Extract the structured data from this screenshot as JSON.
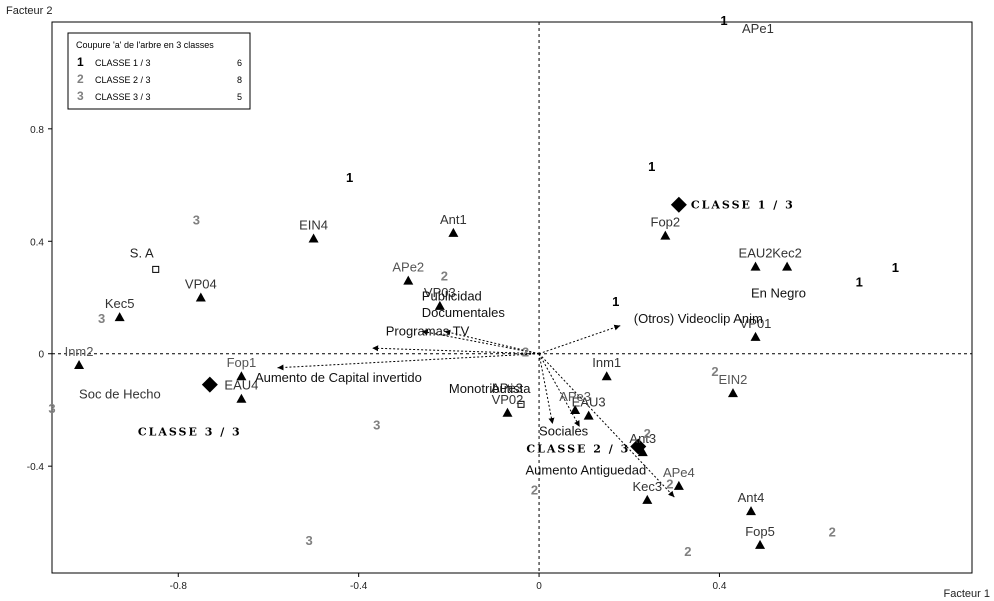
{
  "chart_data": {
    "type": "scatter",
    "xlabel": "Facteur 1",
    "ylabel": "Facteur 2",
    "xlim": [
      -1.08,
      0.96
    ],
    "ylim": [
      -0.78,
      1.18
    ],
    "x_ticks": [
      -0.8,
      -0.4,
      0,
      0.4
    ],
    "y_ticks": [
      -0.4,
      0,
      0.4,
      0.8
    ],
    "grid": false,
    "zero_lines": true,
    "legend": {
      "title": "Coupure 'a' de l'arbre en  3 classes",
      "placement": "top-left",
      "entries": [
        {
          "num": "1",
          "label": "CLASSE  1 / 3",
          "count": "6",
          "color": "#000000"
        },
        {
          "num": "2",
          "label": "CLASSE  2 / 3",
          "count": "8",
          "color": "#808080"
        },
        {
          "num": "3",
          "label": "CLASSE  3 / 3",
          "count": "5",
          "color": "#808080"
        }
      ]
    },
    "centroids": [
      {
        "label": "CLASSE  1 / 3",
        "x": 0.31,
        "y": 0.53
      },
      {
        "label": "CLASSE  2 / 3",
        "x": 0.22,
        "y": -0.33
      },
      {
        "label": "CLASSE  3 / 3",
        "x": -0.73,
        "y": -0.11
      }
    ],
    "active_points": [
      {
        "label": "EIN4",
        "x": -0.5,
        "y": 0.41,
        "color": "#333333"
      },
      {
        "label": "Ant1",
        "x": -0.19,
        "y": 0.43,
        "color": "#333333"
      },
      {
        "label": "APe2",
        "x": -0.29,
        "y": 0.26,
        "color": "#555555"
      },
      {
        "label": "VP03",
        "x": -0.22,
        "y": 0.17,
        "color": "#333333"
      },
      {
        "label": "VP04",
        "x": -0.75,
        "y": 0.2,
        "color": "#333333"
      },
      {
        "label": "Kec5",
        "x": -0.93,
        "y": 0.13,
        "color": "#333333"
      },
      {
        "label": "Inm2",
        "x": -1.02,
        "y": -0.04,
        "color": "#555555"
      },
      {
        "label": "Fop1",
        "x": -0.66,
        "y": -0.08,
        "color": "#555555"
      },
      {
        "label": "EAU4",
        "x": -0.66,
        "y": -0.16,
        "color": "#333333"
      },
      {
        "label": "Fop2",
        "x": 0.28,
        "y": 0.42,
        "color": "#333333"
      },
      {
        "label": "EAU2",
        "x": 0.48,
        "y": 0.31,
        "color": "#333333"
      },
      {
        "label": "Kec2",
        "x": 0.55,
        "y": 0.31,
        "color": "#333333"
      },
      {
        "label": "VP01",
        "x": 0.48,
        "y": 0.06,
        "color": "#333333"
      },
      {
        "label": "Inm1",
        "x": 0.15,
        "y": -0.08,
        "color": "#333333"
      },
      {
        "label": "EIN2",
        "x": 0.43,
        "y": -0.14,
        "color": "#555555"
      },
      {
        "label": "EAU3",
        "x": 0.11,
        "y": -0.22,
        "color": "#333333"
      },
      {
        "label": "APe3",
        "x": 0.08,
        "y": -0.2,
        "color": "#555555"
      },
      {
        "label": "VP02",
        "x": -0.07,
        "y": -0.21,
        "color": "#333333"
      },
      {
        "label": "Ant3",
        "x": 0.23,
        "y": -0.35,
        "color": "#333333"
      },
      {
        "label": "APe4",
        "x": 0.31,
        "y": -0.47,
        "color": "#555555"
      },
      {
        "label": "Kec3",
        "x": 0.24,
        "y": -0.52,
        "color": "#333333"
      },
      {
        "label": "Ant4",
        "x": 0.47,
        "y": -0.56,
        "color": "#333333"
      },
      {
        "label": "Fop5",
        "x": 0.49,
        "y": -0.68,
        "color": "#333333"
      },
      {
        "label": "APe1",
        "x": 0.0,
        "y": 0.0,
        "color": "#333333"
      }
    ],
    "supplementary_points": [
      {
        "label": "S. A",
        "x": -0.85,
        "y": 0.3
      },
      {
        "label": "APe3",
        "x": -0.04,
        "y": -0.18
      }
    ],
    "modality_labels": [
      {
        "label": "APe1",
        "x": 0.45,
        "y": 1.14,
        "color": "#333333"
      },
      {
        "label": "Soc de Hecho",
        "x": -1.02,
        "y": -0.16,
        "color": "#333333"
      }
    ],
    "arrows": [
      {
        "label": "Publicidad",
        "x": -0.26,
        "y": 0.08
      },
      {
        "label": "Documentales",
        "x": -0.21,
        "y": 0.08
      },
      {
        "label": "Programas TV",
        "x": -0.37,
        "y": 0.02
      },
      {
        "label": "Aumento de Capital invertido",
        "x": -0.58,
        "y": -0.05
      },
      {
        "label": "(Otros) Videoclip Anim",
        "x": 0.18,
        "y": 0.1
      },
      {
        "label": "Monotributista",
        "x": 0.03,
        "y": -0.25
      },
      {
        "label": "Sociales",
        "x": 0.09,
        "y": -0.26
      },
      {
        "label": "Aumento Antiguedad",
        "x": 0.3,
        "y": -0.51
      }
    ],
    "arrow_labels": [
      {
        "label": "Publicidad",
        "x": -0.26,
        "y": 0.19
      },
      {
        "label": "Documentales",
        "x": -0.26,
        "y": 0.13
      },
      {
        "label": "Programas TV",
        "x": -0.34,
        "y": 0.065
      },
      {
        "label": "Aumento de Capital invertido",
        "x": -0.63,
        "y": -0.1
      },
      {
        "label": "(Otros) Videoclip Anim",
        "x": 0.21,
        "y": 0.11
      },
      {
        "label": "Monotributista",
        "x": -0.2,
        "y": -0.14
      },
      {
        "label": "Sociales",
        "x": 0.0,
        "y": -0.29
      },
      {
        "label": "Aumento Antiguedad",
        "x": -0.03,
        "y": -0.43
      },
      {
        "label": "En Negro",
        "x": 0.47,
        "y": 0.2
      }
    ],
    "class_markers": [
      {
        "num": "1",
        "x": 0.41,
        "y": 1.17,
        "color": "#000000"
      },
      {
        "num": "1",
        "x": 0.25,
        "y": 0.65,
        "color": "#000000"
      },
      {
        "num": "1",
        "x": -0.42,
        "y": 0.61,
        "color": "#000000"
      },
      {
        "num": "1",
        "x": 0.17,
        "y": 0.17,
        "color": "#000000"
      },
      {
        "num": "1",
        "x": 0.71,
        "y": 0.24,
        "color": "#000000"
      },
      {
        "num": "1",
        "x": 0.79,
        "y": 0.29,
        "color": "#000000"
      },
      {
        "num": "2",
        "x": -0.21,
        "y": 0.26,
        "color": "#808080"
      },
      {
        "num": "2",
        "x": -0.03,
        "y": -0.01,
        "color": "#808080"
      },
      {
        "num": "2",
        "x": 0.39,
        "y": -0.08,
        "color": "#808080"
      },
      {
        "num": "2",
        "x": 0.24,
        "y": -0.3,
        "color": "#808080"
      },
      {
        "num": "2",
        "x": 0.29,
        "y": -0.48,
        "color": "#808080"
      },
      {
        "num": "2",
        "x": -0.01,
        "y": -0.5,
        "color": "#808080"
      },
      {
        "num": "2",
        "x": 0.33,
        "y": -0.72,
        "color": "#808080"
      },
      {
        "num": "2",
        "x": 0.65,
        "y": -0.65,
        "color": "#808080"
      },
      {
        "num": "3",
        "x": -0.76,
        "y": 0.46,
        "color": "#808080"
      },
      {
        "num": "3",
        "x": -0.97,
        "y": 0.11,
        "color": "#808080"
      },
      {
        "num": "3",
        "x": -1.08,
        "y": -0.21,
        "color": "#808080"
      },
      {
        "num": "3",
        "x": -0.36,
        "y": -0.27,
        "color": "#808080"
      },
      {
        "num": "3",
        "x": -0.51,
        "y": -0.68,
        "color": "#808080"
      }
    ]
  }
}
